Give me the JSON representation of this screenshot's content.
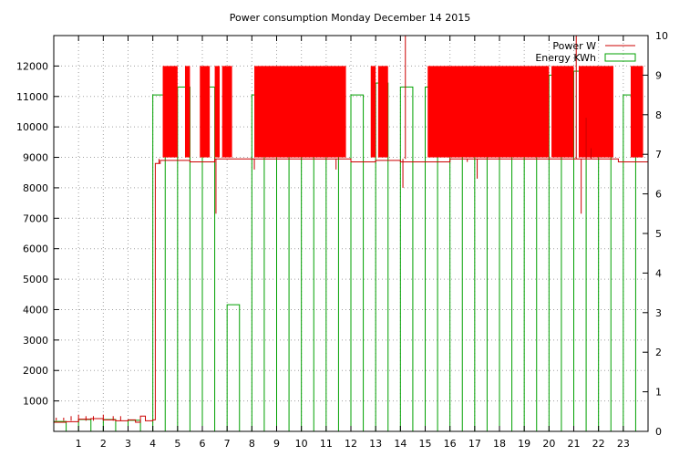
{
  "chart_data": {
    "type": "bar",
    "title": "Power consumption Monday December 14 2015",
    "xlabel": "",
    "ylabel": "",
    "y2label": "",
    "xlim": [
      0,
      24
    ],
    "ylim": [
      0,
      13000
    ],
    "y2lim": [
      0,
      10
    ],
    "x_ticks": [
      1,
      2,
      3,
      4,
      5,
      6,
      7,
      8,
      9,
      10,
      11,
      12,
      13,
      14,
      15,
      16,
      17,
      18,
      19,
      20,
      21,
      22,
      23
    ],
    "y_ticks": [
      1000,
      2000,
      3000,
      4000,
      5000,
      6000,
      7000,
      8000,
      9000,
      10000,
      11000,
      12000
    ],
    "y2_ticks": [
      0,
      1,
      2,
      3,
      4,
      5,
      6,
      7,
      8,
      9,
      10
    ],
    "grid": true,
    "legend_position": "top-right",
    "series": [
      {
        "name": "Power W",
        "color": "#cc0000",
        "axis": "y1",
        "baseline": [
          [
            0,
            300
          ],
          [
            0.5,
            320
          ],
          [
            1,
            400
          ],
          [
            1.5,
            420
          ],
          [
            2,
            380
          ],
          [
            2.5,
            350
          ],
          [
            3,
            380
          ],
          [
            3.3,
            300
          ],
          [
            3.5,
            500
          ],
          [
            3.7,
            350
          ],
          [
            4.0,
            380
          ],
          [
            4.1,
            8800
          ],
          [
            4.3,
            8900
          ],
          [
            5.5,
            8850
          ],
          [
            6.5,
            8950
          ],
          [
            7.0,
            8950
          ],
          [
            8.0,
            8950
          ],
          [
            12.0,
            8850
          ],
          [
            13.0,
            8900
          ],
          [
            14.0,
            8850
          ],
          [
            15.0,
            8850
          ],
          [
            16.0,
            8950
          ],
          [
            20.0,
            8950
          ],
          [
            22.0,
            8950
          ],
          [
            22.8,
            8850
          ],
          [
            24,
            8900
          ]
        ],
        "high_blocks": [
          [
            4.4,
            5.0,
            12000
          ],
          [
            5.3,
            5.5,
            12000
          ],
          [
            5.9,
            6.3,
            12000
          ],
          [
            6.5,
            6.7,
            12000
          ],
          [
            6.8,
            7.2,
            12000
          ],
          [
            8.1,
            11.8,
            12000
          ],
          [
            12.8,
            13.0,
            12000
          ],
          [
            13.1,
            13.5,
            12000
          ],
          [
            15.1,
            20.0,
            12000
          ],
          [
            20.1,
            21.0,
            12000
          ],
          [
            21.2,
            22.6,
            12000
          ],
          [
            23.3,
            23.8,
            12000
          ]
        ],
        "spikes": [
          [
            0.1,
            450
          ],
          [
            0.4,
            450
          ],
          [
            0.7,
            500
          ],
          [
            1.0,
            550
          ],
          [
            1.3,
            500
          ],
          [
            1.6,
            500
          ],
          [
            2.0,
            550
          ],
          [
            2.4,
            500
          ],
          [
            2.7,
            500
          ],
          [
            4.25,
            8800
          ],
          [
            6.55,
            7150
          ],
          [
            8.1,
            8600
          ],
          [
            11.4,
            8600
          ],
          [
            14.1,
            8000
          ],
          [
            14.2,
            13000
          ],
          [
            16.7,
            8850
          ],
          [
            17.1,
            8300
          ],
          [
            21.1,
            13000
          ],
          [
            21.3,
            7150
          ],
          [
            21.5,
            10300
          ],
          [
            21.7,
            9300
          ]
        ]
      },
      {
        "name": "Energy KWh",
        "color": "#00a000",
        "axis": "y2",
        "width": 0.5,
        "x": [
          0,
          1,
          2,
          3,
          4,
          5,
          6,
          7,
          8,
          9,
          10,
          11,
          12,
          13,
          14,
          15,
          16,
          17,
          18,
          19,
          20,
          21,
          22,
          23
        ],
        "values": [
          0.25,
          0.3,
          0.3,
          0.28,
          8.5,
          8.7,
          8.7,
          3.2,
          8.5,
          9.1,
          9.15,
          8.6,
          8.5,
          8.8,
          8.7,
          8.7,
          8.7,
          8.9,
          9.1,
          8.6,
          9.0,
          9.1,
          8.9,
          8.5
        ]
      }
    ]
  }
}
